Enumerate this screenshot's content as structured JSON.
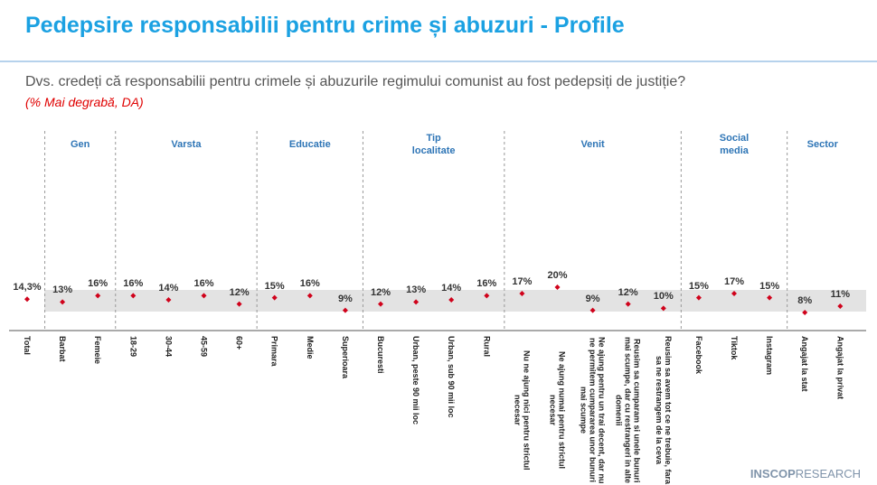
{
  "chart_data": {
    "type": "dot",
    "title": "Pedepsire responsabilii pentru crime și abuzuri - Profile",
    "subtitle": "Dvs. credeți că responsabilii pentru crimele și abuzurile regimului comunist au fost pedepsiți de justiție?",
    "note": "(% Mai degrabă, DA)",
    "categories": [
      "Total",
      "Barbat",
      "Femeie",
      "18-29",
      "30-44",
      "45-59",
      "60+",
      "Primara",
      "Medie",
      "Superioara",
      "Bucuresti",
      "Urban, peste 90 mii loc",
      "Urban, sub 90 mii loc",
      "Rural",
      "Nu ne ajung nici pentru strictul necesar",
      "Ne ajung numai pentru strictul necesar",
      "Ne ajung pentru un trai decent, dar nu ne permitem cumpararea unor bunuri mai scumpe",
      "Reusim sa cumparam si unele bunuri mai scumpe, dar cu restrangeri in alte domenii",
      "Reusim sa avem tot ce ne trebuie, fara sa ne restrangem de la ceva",
      "Facebook",
      "Tiktok",
      "Instagram",
      "Angajat la stat",
      "Angajat la privat"
    ],
    "values": [
      14.3,
      13,
      16,
      16,
      14,
      16,
      12,
      15,
      16,
      9,
      12,
      13,
      14,
      16,
      17,
      20,
      9,
      12,
      10,
      15,
      17,
      15,
      8,
      11
    ],
    "value_labels": [
      "14,3%",
      "13%",
      "16%",
      "16%",
      "14%",
      "16%",
      "12%",
      "15%",
      "16%",
      "9%",
      "12%",
      "13%",
      "14%",
      "16%",
      "17%",
      "20%",
      "9%",
      "12%",
      "10%",
      "15%",
      "17%",
      "15%",
      "8%",
      "11%"
    ],
    "groups": [
      {
        "label": "Gen",
        "count": 2
      },
      {
        "label": "Varsta",
        "count": 4
      },
      {
        "label": "Educatie",
        "count": 3
      },
      {
        "label": "Tip localitate",
        "count": 4
      },
      {
        "label": "Venit",
        "count": 5
      },
      {
        "label": "Social media",
        "count": 3
      },
      {
        "label": "Sector",
        "count": 2
      }
    ],
    "color": "#d0021b",
    "ylim": [
      0,
      40
    ]
  },
  "footer": {
    "brand": "INSCOP",
    "suffix": "RESEARCH"
  }
}
